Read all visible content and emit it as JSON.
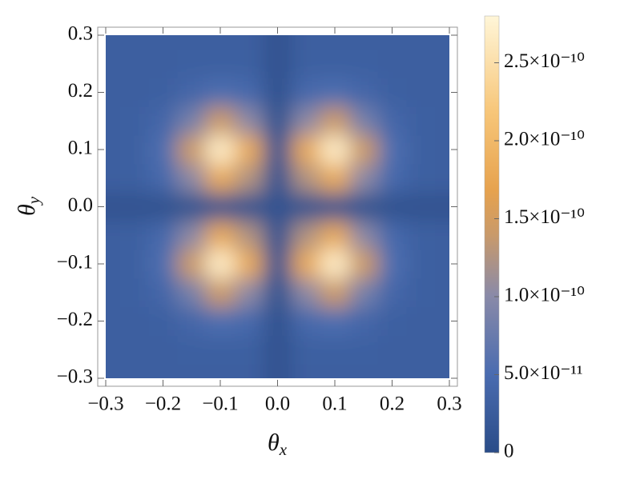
{
  "chart_data": {
    "type": "heatmap",
    "xlabel": {
      "text": "θ",
      "sub": "x"
    },
    "ylabel": {
      "text": "θ",
      "sub": "y"
    },
    "x": [
      -0.3,
      -0.25,
      -0.2,
      -0.15,
      -0.1,
      -0.05,
      0,
      0.05,
      0.1,
      0.15,
      0.2,
      0.25,
      0.3
    ],
    "y": [
      -0.3,
      -0.25,
      -0.2,
      -0.15,
      -0.1,
      -0.05,
      0,
      0.05,
      0.1,
      0.15,
      0.2,
      0.25,
      0.3
    ],
    "z": [
      [
        3e-11,
        3e-11,
        3e-11,
        3e-11,
        3e-11,
        3e-11,
        1e-11,
        3e-11,
        3e-11,
        3e-11,
        3e-11,
        3e-11,
        3e-11
      ],
      [
        3e-11,
        3e-11,
        3e-11,
        3.1e-11,
        3.2e-11,
        3.1e-11,
        1e-11,
        3.1e-11,
        3.2e-11,
        3.1e-11,
        3e-11,
        3e-11,
        3e-11
      ],
      [
        3e-11,
        3e-11,
        3.2e-11,
        4.1e-11,
        5.3e-11,
        4.5e-11,
        1e-11,
        4.5e-11,
        5.3e-11,
        4.1e-11,
        3.2e-11,
        3e-11,
        3e-11
      ],
      [
        3e-11,
        3.1e-11,
        4.1e-11,
        8.5e-11,
        1.45e-10,
        1.02e-10,
        1e-11,
        1.02e-10,
        1.45e-10,
        8.5e-11,
        4.1e-11,
        3.1e-11,
        3e-11
      ],
      [
        3e-11,
        3.2e-11,
        5.3e-11,
        1.45e-10,
        2.69e-10,
        1.8e-10,
        1e-11,
        1.8e-10,
        2.69e-10,
        1.45e-10,
        5.3e-11,
        3.2e-11,
        3e-11
      ],
      [
        3e-11,
        3.1e-11,
        4.5e-11,
        1.02e-10,
        1.8e-10,
        1.25e-10,
        1e-11,
        1.25e-10,
        1.8e-10,
        1.02e-10,
        4.5e-11,
        3.1e-11,
        3e-11
      ],
      [
        1e-11,
        1e-11,
        1e-11,
        1e-11,
        1e-11,
        1e-11,
        1e-11,
        1e-11,
        1e-11,
        1e-11,
        1e-11,
        1e-11,
        1e-11
      ],
      [
        3e-11,
        3.1e-11,
        4.5e-11,
        1.02e-10,
        1.8e-10,
        1.25e-10,
        1e-11,
        1.25e-10,
        1.8e-10,
        1.02e-10,
        4.5e-11,
        3.1e-11,
        3e-11
      ],
      [
        3e-11,
        3.2e-11,
        5.3e-11,
        1.45e-10,
        2.69e-10,
        1.8e-10,
        1e-11,
        1.8e-10,
        2.69e-10,
        1.45e-10,
        5.3e-11,
        3.2e-11,
        3e-11
      ],
      [
        3e-11,
        3.1e-11,
        4.1e-11,
        8.5e-11,
        1.45e-10,
        1.02e-10,
        1e-11,
        1.02e-10,
        1.45e-10,
        8.5e-11,
        4.1e-11,
        3.1e-11,
        3e-11
      ],
      [
        3e-11,
        3e-11,
        3.2e-11,
        4.1e-11,
        5.3e-11,
        4.5e-11,
        1e-11,
        4.5e-11,
        5.3e-11,
        4.1e-11,
        3.2e-11,
        3e-11,
        3e-11
      ],
      [
        3e-11,
        3e-11,
        3e-11,
        3.1e-11,
        3.2e-11,
        3.1e-11,
        1e-11,
        3.1e-11,
        3.2e-11,
        3.1e-11,
        3e-11,
        3e-11,
        3e-11
      ],
      [
        3e-11,
        3e-11,
        3e-11,
        3e-11,
        3e-11,
        3e-11,
        1e-11,
        3e-11,
        3e-11,
        3e-11,
        3e-11,
        3e-11,
        3e-11
      ]
    ],
    "xlim": [
      -0.3,
      0.3
    ],
    "ylim": [
      -0.3,
      0.3
    ],
    "xticks": [
      {
        "value": -0.3,
        "label": "−0.3"
      },
      {
        "value": -0.2,
        "label": "−0.2"
      },
      {
        "value": -0.1,
        "label": "−0.1"
      },
      {
        "value": 0,
        "label": "0.0"
      },
      0.1,
      0.2,
      0.3
    ],
    "yticks": [
      {
        "value": -0.3,
        "label": "−0.3"
      },
      {
        "value": -0.2,
        "label": "−0.2"
      },
      {
        "value": -0.1,
        "label": "−0.1"
      },
      {
        "value": 0,
        "label": "0.0"
      },
      0.1,
      0.2,
      0.3
    ],
    "clim": [
      0,
      2.8e-10
    ],
    "cticks": [
      0,
      {
        "value": 5e-11,
        "label": "5.0×10⁻¹¹"
      },
      {
        "value": 1e-10,
        "label": "1.0×10⁻¹⁰"
      },
      {
        "value": 1.5e-10,
        "label": "1.5×10⁻¹⁰"
      },
      {
        "value": 2e-10,
        "label": "2.0×10⁻¹⁰"
      },
      {
        "value": 2.5e-10,
        "label": "2.5×10⁻¹⁰"
      }
    ],
    "colorscale": [
      [
        0,
        "#2a4c88"
      ],
      [
        0.18,
        "#4a6cb0"
      ],
      [
        0.36,
        "#8a8aa8"
      ],
      [
        0.5,
        "#c99a6a"
      ],
      [
        0.6,
        "#e6a24e"
      ],
      [
        0.78,
        "#f7c679"
      ],
      [
        1,
        "#fff6d8"
      ]
    ]
  }
}
